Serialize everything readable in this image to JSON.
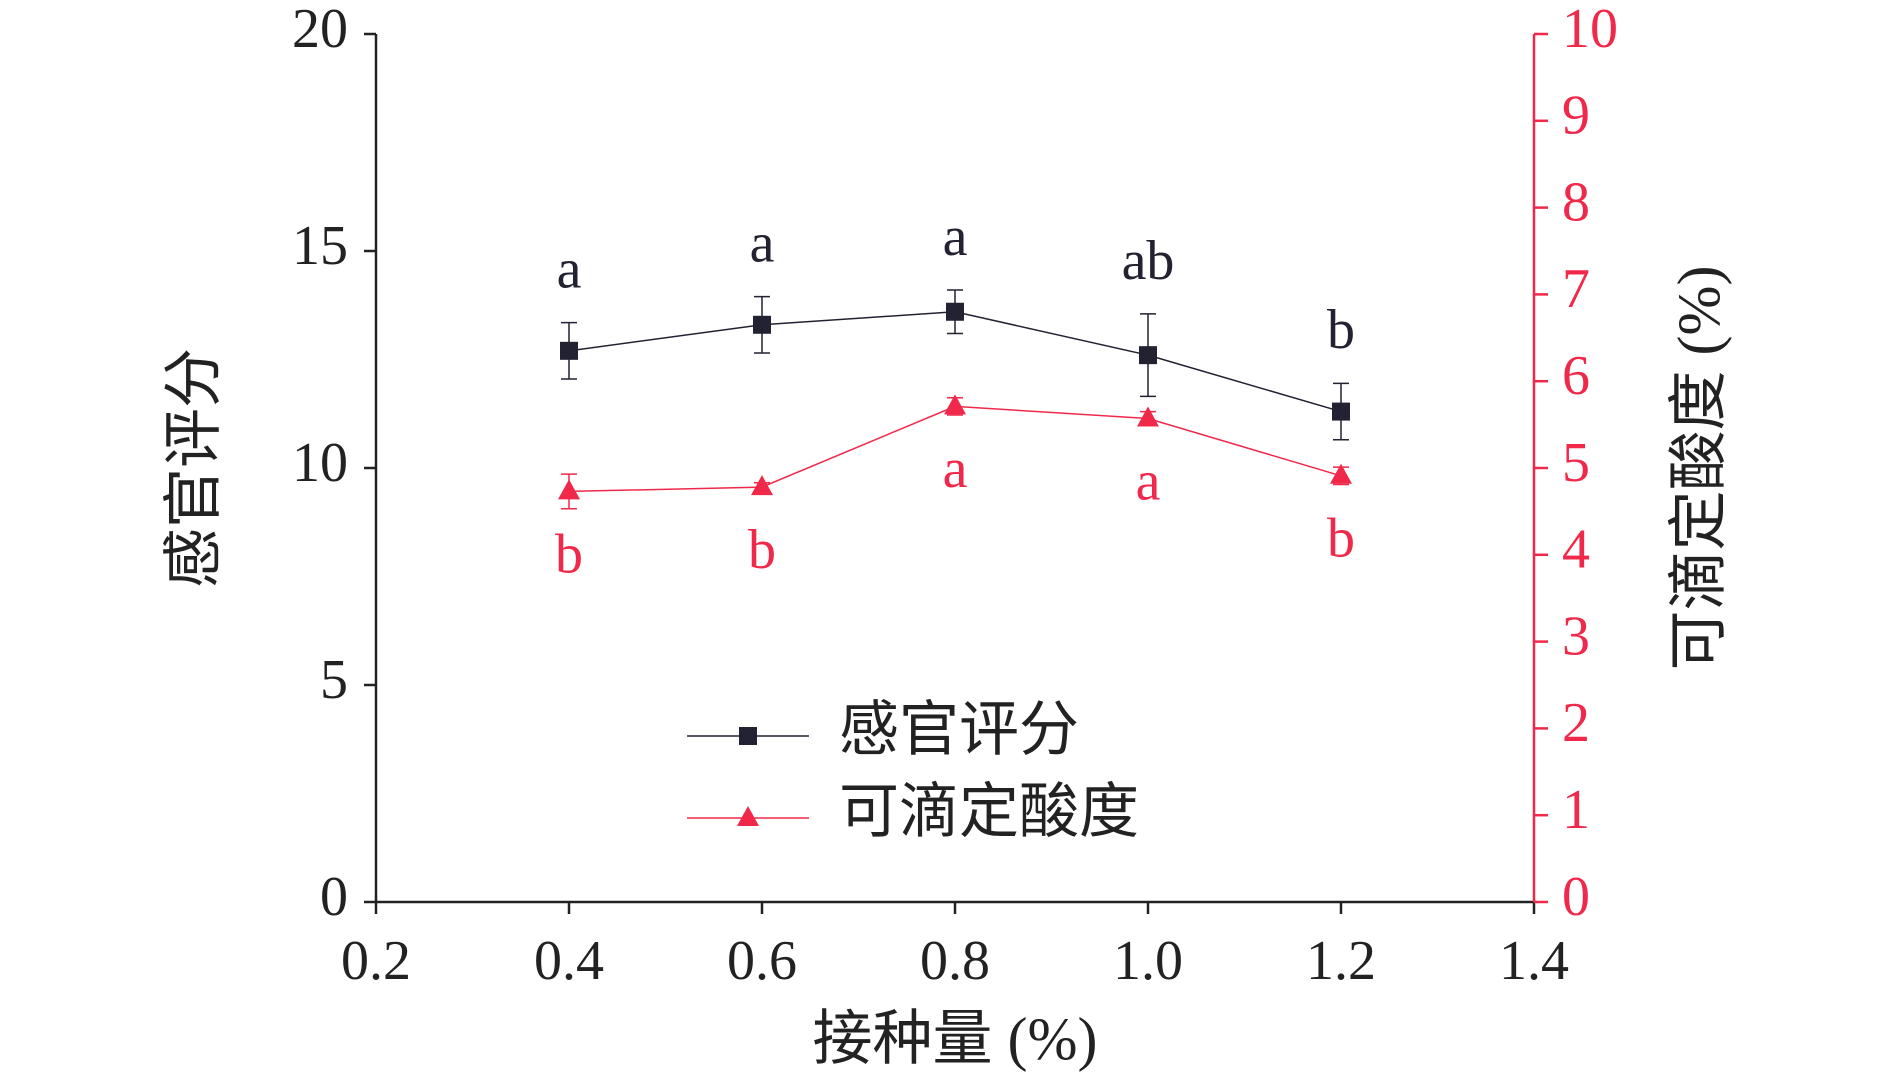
{
  "chart_data": {
    "type": "line",
    "x_label": "接种量 (%)",
    "y_label": "感官评分",
    "y2_label": "可滴定酸度 (%)",
    "x": [
      0.4,
      0.6,
      0.8,
      1.0,
      1.2
    ],
    "xlim": [
      0.2,
      1.4
    ],
    "xticks": [
      0.2,
      0.4,
      0.6,
      0.8,
      {
        "value": 1.0,
        "label": "1.0"
      },
      1.2,
      1.4
    ],
    "ylim": [
      0,
      20
    ],
    "yticks": [
      0,
      5,
      10,
      15,
      20
    ],
    "y2lim": [
      0,
      10
    ],
    "y2ticks": [
      0,
      1,
      2,
      3,
      4,
      5,
      6,
      7,
      8,
      9,
      10
    ],
    "y2_color": "#f0284a",
    "legend": "lower center",
    "series": [
      {
        "name": "感官评分",
        "color": "#222233",
        "marker": "square",
        "values": [
          12.7,
          13.3,
          13.6,
          12.6,
          11.3
        ],
        "errors": [
          0.65,
          0.65,
          0.5,
          0.95,
          0.65
        ],
        "letters": [
          "a",
          "a",
          "a",
          "ab",
          "b"
        ],
        "letter_side": "above"
      },
      {
        "name": "可滴定酸度",
        "color": "#f0284a",
        "marker": "triangle",
        "axis": "y2",
        "values": [
          4.73,
          4.78,
          5.71,
          5.57,
          4.91
        ],
        "errors": [
          0.2,
          0.05,
          0.1,
          0.08,
          0.1
        ],
        "letters": [
          "b",
          "b",
          "a",
          "a",
          "b"
        ],
        "letter_side": "below"
      }
    ]
  }
}
